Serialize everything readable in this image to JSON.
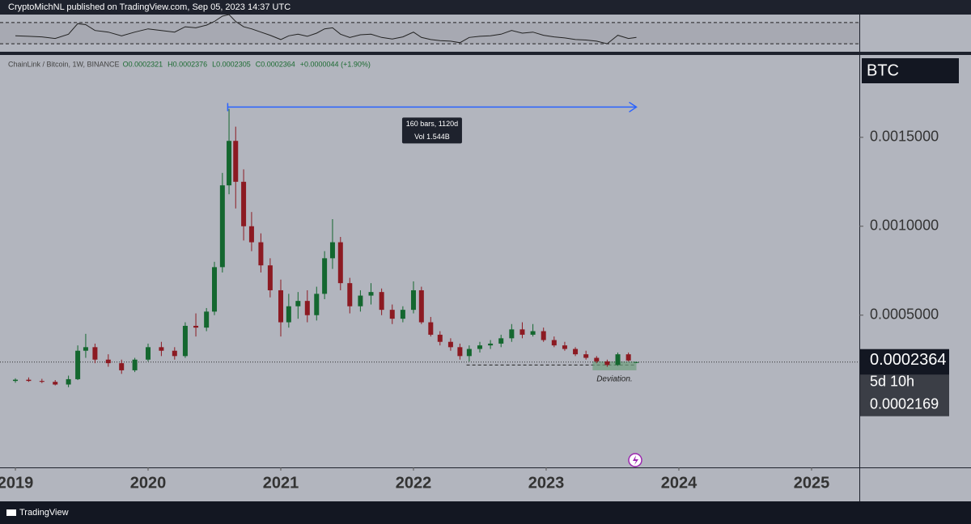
{
  "header": {
    "publisher_line": "CryptoMichNL published on TradingView.com, Sep 05, 2023 14:37 UTC"
  },
  "chart_data": {
    "type": "candlestick",
    "symbol": "ChainLink / Bitcoin, 1W, BINANCE",
    "legend_texts": [
      "O0.0002321",
      "H0.0002376",
      "L0.0002305",
      "C0.0002364",
      "+0.0000044 (+1.90%)"
    ],
    "currency": "BTC",
    "x": [
      2019.0,
      2019.1,
      2019.2,
      2019.3,
      2019.4,
      2019.47,
      2019.53,
      2019.6,
      2019.7,
      2019.8,
      2019.9,
      2020.0,
      2020.1,
      2020.2,
      2020.28,
      2020.36,
      2020.44,
      2020.5,
      2020.56,
      2020.61,
      2020.66,
      2020.72,
      2020.78,
      2020.85,
      2020.92,
      2021.0,
      2021.06,
      2021.13,
      2021.2,
      2021.27,
      2021.33,
      2021.39,
      2021.45,
      2021.52,
      2021.6,
      2021.68,
      2021.76,
      2021.84,
      2021.92,
      2022.0,
      2022.06,
      2022.13,
      2022.2,
      2022.28,
      2022.35,
      2022.42,
      2022.5,
      2022.58,
      2022.66,
      2022.74,
      2022.82,
      2022.9,
      2022.98,
      2023.06,
      2023.14,
      2023.22,
      2023.3,
      2023.38,
      2023.46,
      2023.54,
      2023.62,
      2023.68
    ],
    "open": [
      0.00013,
      0.000137,
      0.00013,
      0.000125,
      0.00011,
      0.00014,
      0.0003,
      0.00032,
      0.00025,
      0.00023,
      0.00019,
      0.00025,
      0.00032,
      0.0003,
      0.00027,
      0.00044,
      0.00043,
      0.00052,
      0.00077,
      0.00123,
      0.00148,
      0.00125,
      0.001,
      0.00091,
      0.00078,
      0.00064,
      0.00046,
      0.00055,
      0.00058,
      0.0005,
      0.00062,
      0.00082,
      0.00091,
      0.00068,
      0.00055,
      0.00061,
      0.00063,
      0.00053,
      0.00048,
      0.00053,
      0.00064,
      0.00046,
      0.00039,
      0.00035,
      0.00032,
      0.00027,
      0.00031,
      0.00033,
      0.00034,
      0.00037,
      0.00042,
      0.00039,
      0.00041,
      0.00036,
      0.00033,
      0.00031,
      0.00028,
      0.00026,
      0.00024,
      0.00022,
      0.00028,
      0.0002321
    ],
    "high": [
      0.000145,
      0.00015,
      0.000142,
      0.000135,
      0.00016,
      0.00033,
      0.000395,
      0.00034,
      0.00028,
      0.00025,
      0.00026,
      0.00034,
      0.00035,
      0.00032,
      0.00046,
      0.00051,
      0.00054,
      0.0008,
      0.0013,
      0.00166,
      0.00156,
      0.00132,
      0.00108,
      0.00096,
      0.00082,
      0.0007,
      0.00062,
      0.00063,
      0.00064,
      0.00066,
      0.00086,
      0.00104,
      0.00094,
      0.00071,
      0.00064,
      0.00068,
      0.00065,
      0.00056,
      0.00055,
      0.00069,
      0.00066,
      0.00049,
      0.00041,
      0.00037,
      0.00034,
      0.00033,
      0.00035,
      0.00036,
      0.00039,
      0.00045,
      0.00046,
      0.00045,
      0.00043,
      0.00038,
      0.00035,
      0.00032,
      0.0003,
      0.00027,
      0.00025,
      0.00029,
      0.00029,
      0.0002376
    ],
    "low": [
      0.00012,
      0.000125,
      0.000118,
      0.000105,
      9.5e-05,
      0.000135,
      0.00026,
      0.00023,
      0.00021,
      0.00017,
      0.00018,
      0.00024,
      0.00027,
      0.00025,
      0.00026,
      0.00038,
      0.00041,
      0.0005,
      0.00074,
      0.00118,
      0.0011,
      0.00092,
      0.00086,
      0.00074,
      0.0006,
      0.00038,
      0.00043,
      0.00048,
      0.00046,
      0.00047,
      0.00059,
      0.00076,
      0.00064,
      0.00051,
      0.00052,
      0.00056,
      0.0005,
      0.00045,
      0.00046,
      0.00051,
      0.00045,
      0.00038,
      0.00033,
      0.0003,
      0.00025,
      0.00024,
      0.00029,
      0.00031,
      0.00032,
      0.00035,
      0.00037,
      0.00038,
      0.00035,
      0.00032,
      0.0003,
      0.00027,
      0.00025,
      0.00023,
      0.00021,
      0.000215,
      0.00024,
      0.0002305
    ],
    "close": [
      0.000137,
      0.00013,
      0.000125,
      0.00011,
      0.00014,
      0.0003,
      0.00032,
      0.00025,
      0.00023,
      0.00019,
      0.00025,
      0.00032,
      0.0003,
      0.00027,
      0.00044,
      0.00043,
      0.00052,
      0.00077,
      0.00123,
      0.00148,
      0.00125,
      0.001,
      0.00091,
      0.00078,
      0.00064,
      0.00046,
      0.00055,
      0.00058,
      0.0005,
      0.00062,
      0.00082,
      0.00091,
      0.00068,
      0.00055,
      0.00061,
      0.00063,
      0.00053,
      0.00048,
      0.00053,
      0.00064,
      0.00046,
      0.00039,
      0.00035,
      0.00032,
      0.00027,
      0.00031,
      0.00033,
      0.00034,
      0.00037,
      0.00042,
      0.00039,
      0.00041,
      0.00036,
      0.00033,
      0.00031,
      0.00028,
      0.00026,
      0.00024,
      0.00022,
      0.00028,
      0.000245,
      0.0002364
    ],
    "up_color": "#14672f",
    "down_color": "#8c1a22",
    "xlim": [
      2018.884,
      2025.36
    ],
    "xticks": [
      2019,
      2020,
      2021,
      2022,
      2023,
      2024,
      2025
    ],
    "ylim": [
      -0.000356,
      0.001963
    ],
    "yticks": [
      {
        "value": 0.0005,
        "label": "0.0005000"
      },
      {
        "value": 0.001,
        "label": "0.0010000"
      },
      {
        "value": 0.0015,
        "label": "0.0015000"
      }
    ],
    "last_price": 0.0002364,
    "countdown": "5d 10h",
    "second_price": 0.0002169,
    "measure": {
      "x": [
        2020.6,
        2023.68
      ],
      "y": 0.00167,
      "labels": [
        "160 bars, 1120d",
        "Vol 1.544B"
      ],
      "color": "#2962ff"
    },
    "support": {
      "x": [
        2022.4,
        2023.68
      ],
      "y": 0.00022
    },
    "zone": {
      "x": [
        2023.35,
        2023.68
      ],
      "y": [
        0.00019,
        0.00024
      ],
      "label": "Deviation.",
      "color": "#6f9e7d"
    },
    "oscillator": {
      "values": [
        45,
        44,
        43,
        40,
        48,
        68,
        66,
        55,
        52,
        45,
        52,
        58,
        55,
        52,
        62,
        60,
        65,
        72,
        82,
        85,
        72,
        62,
        58,
        52,
        46,
        38,
        45,
        48,
        44,
        50,
        58,
        60,
        48,
        42,
        47,
        48,
        42,
        39,
        43,
        52,
        42,
        38,
        36,
        35,
        32,
        42,
        44,
        45,
        48,
        55,
        50,
        52,
        46,
        43,
        41,
        38,
        37,
        35,
        30,
        46,
        40,
        42
      ],
      "levels": [
        30,
        70
      ],
      "ylim": [
        15,
        85
      ],
      "color": "#222"
    }
  },
  "footer": {
    "brand": "TradingView"
  }
}
